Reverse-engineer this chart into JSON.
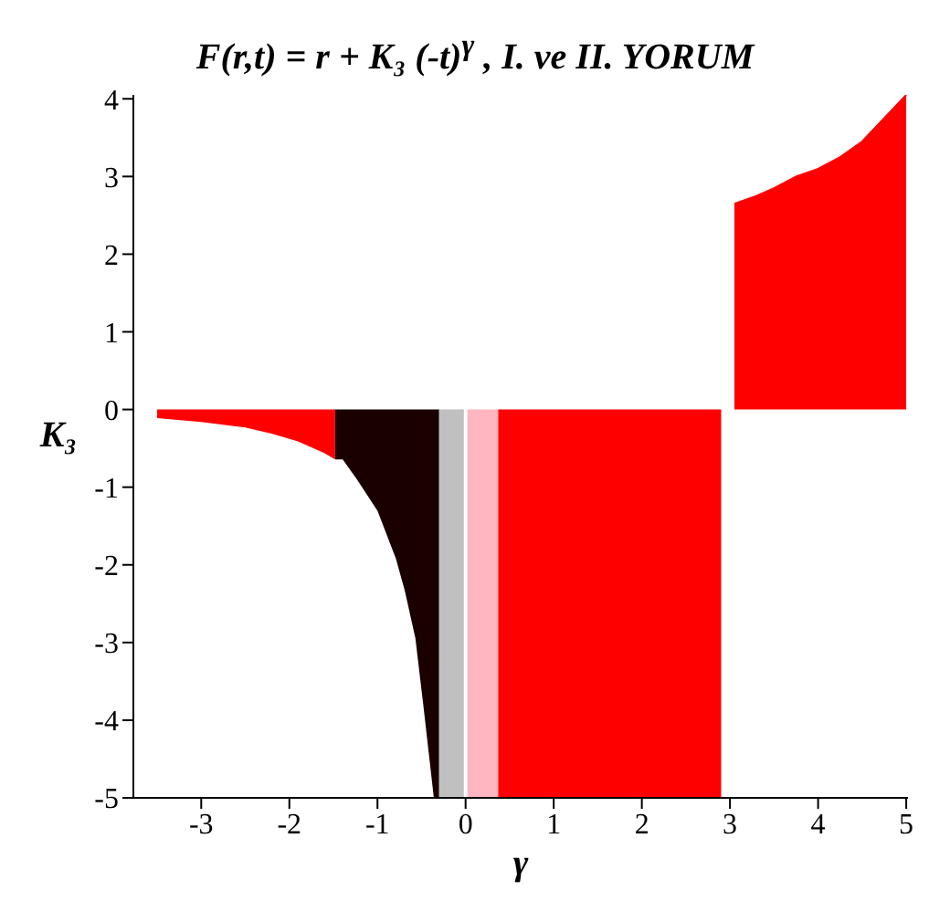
{
  "chart_data": {
    "type": "area",
    "title": "F(r,t) = r + K₃ (-t)$^{γ}$  ,  I. ve II. YORUM",
    "xlabel": "γ",
    "ylabel": "K₃",
    "xlim": [
      -3.77,
      5.02
    ],
    "ylim": [
      -5,
      4.05
    ],
    "xticks": [
      -3,
      -2,
      -1,
      0,
      1,
      2,
      3,
      4,
      5
    ],
    "yticks": [
      -5,
      -4,
      -3,
      -2,
      -1,
      0,
      1,
      2,
      3,
      4
    ],
    "series": [
      {
        "color": "#ff0000",
        "x": [
          -3.5,
          -3,
          -2.5,
          -2.2,
          -1.9,
          -1.6,
          -1.48
        ],
        "values": [
          -0.1,
          -0.15,
          -0.22,
          -0.3,
          -0.4,
          -0.55,
          -0.63
        ]
      },
      {
        "color": "#1a0000",
        "x": [
          -1.48,
          -1.39,
          -1.22,
          -0.99,
          -0.78,
          -0.68,
          -0.56,
          -0.47,
          -0.35,
          -0.3
        ],
        "values": [
          -0.63,
          -0.63,
          -0.9,
          -1.3,
          -1.92,
          -2.33,
          -2.94,
          -3.8,
          -5,
          -5
        ]
      },
      {
        "color": "#c0c0c0",
        "x": [
          -0.3,
          -0.02
        ],
        "values": [
          -5,
          -5
        ]
      },
      {
        "color": "#ffb6c1",
        "x": [
          0.02,
          0.37
        ],
        "values": [
          -5,
          -5
        ]
      },
      {
        "color": "#ff0000",
        "x": [
          0.37,
          2.9
        ],
        "values": [
          -5,
          -5
        ]
      },
      {
        "color": "#ff0000",
        "x": [
          3.05,
          3.3,
          3.5,
          3.75,
          4,
          4.25,
          4.5,
          4.75,
          5
        ],
        "values": [
          2.65,
          2.75,
          2.85,
          3.0,
          3.1,
          3.25,
          3.45,
          3.75,
          4.05
        ]
      }
    ]
  }
}
